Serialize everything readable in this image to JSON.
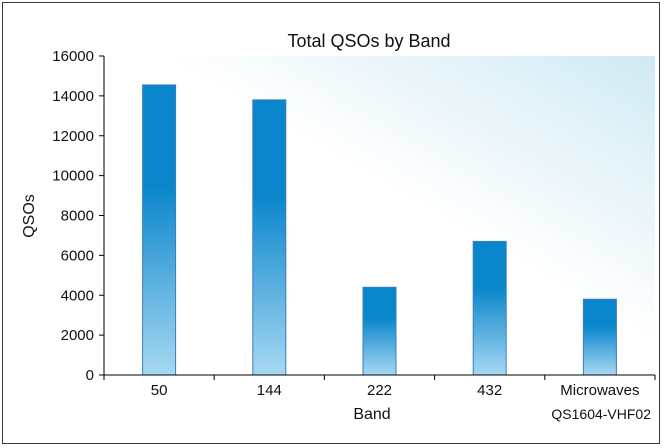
{
  "chart_data": {
    "type": "bar",
    "title": "Total QSOs by Band",
    "xlabel": "Band",
    "ylabel": "QSOs",
    "categories": [
      "50",
      "144",
      "222",
      "432",
      "Microwaves"
    ],
    "values": [
      14550,
      13800,
      4400,
      6700,
      3800
    ],
    "ylim": [
      0,
      16000
    ],
    "yticks": [
      0,
      2000,
      4000,
      6000,
      8000,
      10000,
      12000,
      14000,
      16000
    ],
    "grid": false,
    "legend": "none",
    "colors": {
      "bar_top": "#0a86cc",
      "bar_bottom": "#a7d8f2",
      "bar_stroke": "#3d7db8",
      "plot_bg_light": "#ffffff",
      "plot_bg_tint": "#cfeaf4",
      "axis": "#000000"
    }
  },
  "credit": "QS1604-VHF02"
}
